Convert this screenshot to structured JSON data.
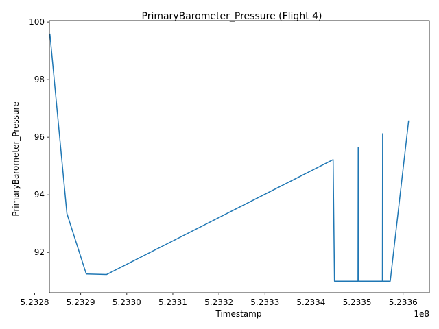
{
  "chart_data": {
    "type": "line",
    "title": "PrimaryBarometer_Pressure (Flight 4)",
    "xlabel": "Timestamp",
    "ylabel": "PrimaryBarometer_Pressure",
    "x_offset_label": "1e8",
    "xlim": [
      523283200,
      523365700
    ],
    "ylim": [
      90.6,
      100.05
    ],
    "x_ticks": [
      {
        "value": 523280000,
        "label": "5.2328"
      },
      {
        "value": 523290000,
        "label": "5.2329"
      },
      {
        "value": 523300000,
        "label": "5.2330"
      },
      {
        "value": 523310000,
        "label": "5.2331"
      },
      {
        "value": 523320000,
        "label": "5.2332"
      },
      {
        "value": 523330000,
        "label": "5.2333"
      },
      {
        "value": 523340000,
        "label": "5.2334"
      },
      {
        "value": 523350000,
        "label": "5.2335"
      },
      {
        "value": 523360000,
        "label": "5.2336"
      }
    ],
    "y_ticks": [
      {
        "value": 92,
        "label": "92"
      },
      {
        "value": 94,
        "label": "94"
      },
      {
        "value": 96,
        "label": "96"
      },
      {
        "value": 98,
        "label": "98"
      },
      {
        "value": 100,
        "label": "100"
      }
    ],
    "grid": false,
    "line_color": "#1f77b4",
    "series": [
      {
        "x": [
          523283300,
          523287000,
          523291200,
          523295600,
          523344800,
          523345100,
          523350200,
          523350250,
          523350300,
          523355500,
          523355550,
          523355600,
          523357200,
          523361200
        ],
        "y": [
          99.6,
          93.35,
          91.25,
          91.23,
          95.22,
          91.0,
          91.0,
          95.65,
          91.0,
          91.0,
          96.12,
          91.0,
          91.0,
          96.58
        ]
      }
    ]
  }
}
